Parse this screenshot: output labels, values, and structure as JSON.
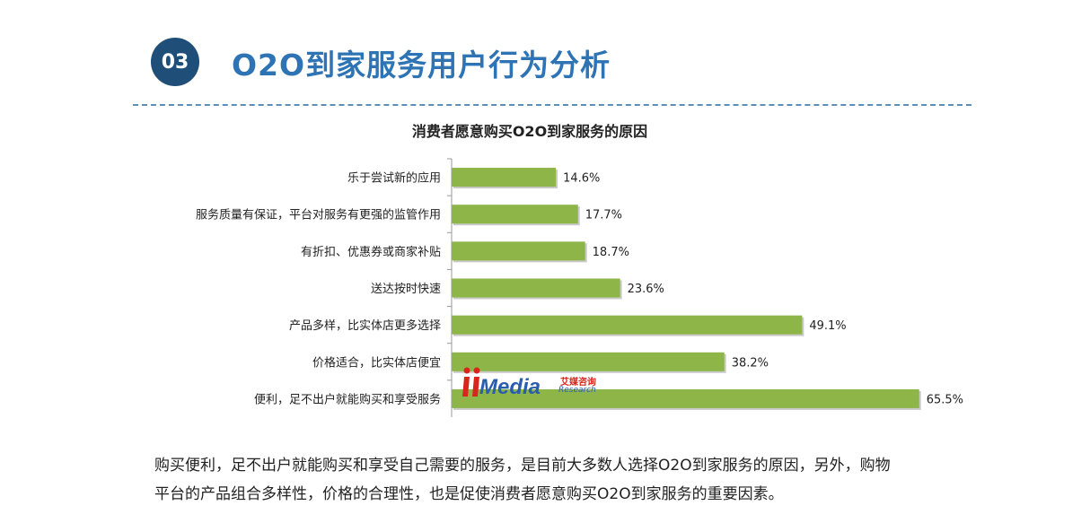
{
  "header": {
    "section_number": "03",
    "section_title": "O2O到家服务用户行为分析"
  },
  "chart_data": {
    "type": "bar",
    "orientation": "horizontal",
    "title": "消费者愿意购买O2O到家服务的原因",
    "categories": [
      "乐于尝试新的应用",
      "服务质量有保证，平台对服务有更强的监管作用",
      "有折扣、优惠券或商家补贴",
      "送达按时快速",
      "产品多样，比实体店更多选择",
      "价格适合，比实体店便宜",
      "便利，足不出户就能购买和享受服务"
    ],
    "values": [
      14.6,
      17.7,
      18.7,
      23.6,
      49.1,
      38.2,
      65.5
    ],
    "value_labels": [
      "14.6%",
      "17.7%",
      "18.7%",
      "23.6%",
      "49.1%",
      "38.2%",
      "65.5%"
    ],
    "bar_color": "#8db548",
    "grid": false,
    "legend": "none"
  },
  "watermark": {
    "brand": "Media",
    "brand_cn": "艾媒咨询",
    "brand_en": "Research"
  },
  "body": {
    "line1": "购买便利，足不出户就能购买和享受自己需要的服务，是目前大多数人选择O2O到家服务的原因，另外，购物",
    "line2": "平台的产品组合多样性，价格的合理性，也是促使消费者愿意购买O2O到家服务的重要因素。"
  }
}
